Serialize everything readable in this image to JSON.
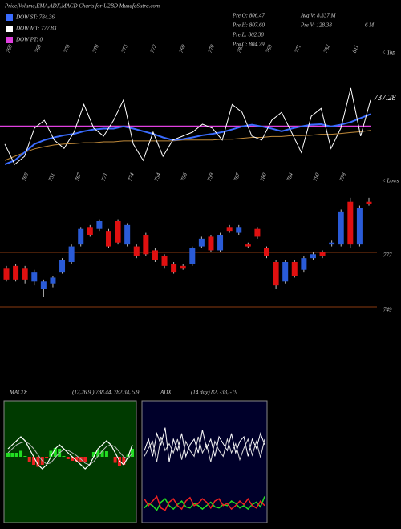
{
  "header": {
    "title": "Price,Volume,EMA,ADX,MACD Charts for U2BD MunafaSutra.com",
    "legend": [
      {
        "label": "DOW ST: 784.36",
        "color": "#3a6cff"
      },
      {
        "label": "DOW MT: 777.83",
        "color": "#ffffff"
      },
      {
        "label": "DOW PT: 0",
        "color": "#e040e0"
      }
    ],
    "info": [
      "Pre O: 806.47",
      "Pre H: 807.60",
      "Pre L: 802.38",
      "Pre C: 804.79"
    ],
    "info2": [
      "Avg V: 8.337 M",
      "Pre V: 128.38"
    ],
    "period": "6 M"
  },
  "chart_data": [
    {
      "type": "line",
      "end_label": "737.28",
      "top_marker": "< Top",
      "low_marker": "< Lows",
      "top_labels": [
        "769",
        "768",
        "770",
        "770",
        "773",
        "772",
        "769",
        "770",
        "783",
        "769",
        "771",
        "782",
        "811"
      ],
      "low_labels": [
        "768",
        "751",
        "767",
        "771",
        "774",
        "754",
        "756",
        "759",
        "767",
        "780",
        "784",
        "790",
        "778"
      ],
      "ylim": [
        725,
        745
      ],
      "hline": {
        "value": 734.5,
        "color": "#e040e0"
      },
      "series": [
        {
          "name": "Close",
          "color": "#ffffff",
          "values": [
            730.5,
            725.9,
            727.7,
            734.1,
            735.9,
            731.4,
            729.5,
            733.2,
            739.5,
            734.1,
            732.3,
            735.9,
            740.5,
            730.5,
            726.8,
            733.2,
            727.7,
            731.4,
            732.3,
            733.2,
            735.0,
            734.1,
            731.4,
            739.5,
            737.7,
            732.3,
            731.4,
            735.9,
            737.7,
            733.2,
            728.6,
            736.8,
            738.6,
            729.5,
            734.1,
            743.2,
            732.3,
            740.5
          ]
        },
        {
          "name": "EMA short",
          "color": "#3a6cff",
          "values": [
            725.9,
            726.8,
            728.6,
            730.5,
            731.4,
            732.0,
            732.5,
            732.8,
            733.4,
            733.8,
            734.0,
            734.0,
            734.5,
            734.0,
            733.4,
            732.8,
            732.0,
            731.4,
            731.6,
            732.0,
            732.5,
            732.8,
            733.2,
            733.8,
            734.5,
            734.9,
            734.5,
            734.0,
            733.4,
            734.0,
            734.5,
            734.9,
            735.0,
            734.5,
            734.9,
            735.5,
            736.4,
            737.3
          ]
        },
        {
          "name": "EMA long",
          "color": "#c08a3a",
          "values": [
            726.8,
            727.7,
            728.6,
            729.4,
            729.9,
            730.3,
            730.5,
            730.6,
            730.8,
            730.8,
            731.0,
            731.0,
            731.2,
            731.2,
            731.2,
            731.2,
            731.2,
            731.2,
            731.4,
            731.4,
            731.4,
            731.4,
            731.6,
            731.6,
            731.8,
            732.0,
            732.0,
            732.2,
            732.2,
            732.4,
            732.4,
            732.5,
            732.7,
            732.7,
            732.9,
            733.1,
            733.3,
            733.6
          ]
        }
      ]
    },
    {
      "type": "candlestick",
      "ylim": [
        744,
        814
      ],
      "yticks": [
        777,
        749
      ],
      "open": [
        769,
        770,
        769,
        762,
        758,
        761,
        767,
        772,
        781,
        790,
        789,
        788,
        793,
        781,
        780,
        786,
        778,
        775,
        771,
        770,
        771,
        780,
        785,
        778,
        790,
        787,
        781,
        789,
        779,
        772,
        762,
        772,
        768,
        774,
        777,
        781,
        781,
        803,
        781,
        803
      ],
      "high": [
        770,
        771,
        770,
        768,
        763,
        765,
        774,
        781,
        790,
        791,
        794,
        789,
        794,
        792,
        781,
        787,
        779,
        776,
        772,
        771,
        780,
        785,
        786,
        787,
        791,
        791,
        782,
        790,
        780,
        773,
        773,
        773,
        775,
        777,
        778,
        783,
        799,
        805,
        801,
        805
      ],
      "low": [
        762,
        762,
        761,
        760,
        754,
        759,
        766,
        771,
        780,
        785,
        788,
        779,
        781,
        780,
        774,
        775,
        772,
        769,
        766,
        768,
        770,
        779,
        777,
        777,
        787,
        786,
        779,
        784,
        774,
        758,
        761,
        764,
        767,
        773,
        774,
        780,
        780,
        779,
        780,
        801
      ],
      "close": [
        763,
        763,
        763,
        767,
        762,
        764,
        773,
        780,
        789,
        786,
        793,
        780,
        782,
        791,
        775,
        776,
        773,
        770,
        767,
        769,
        779,
        784,
        778,
        786,
        788,
        790,
        780,
        785,
        775,
        760,
        772,
        765,
        774,
        776,
        775,
        782,
        798,
        781,
        800,
        802
      ],
      "up_color": "#2a5bd7",
      "down_color": "#e01010"
    },
    {
      "type": "macd",
      "label": "MACD:",
      "params": "(12,26,9 ) 788.44, 782.34, 5.9",
      "ylim": [
        -8,
        8
      ],
      "macd": [
        2,
        3,
        4,
        5,
        4,
        2,
        0,
        -2,
        -3,
        -2,
        0,
        2,
        3,
        2,
        1,
        0,
        -1,
        -2,
        -3,
        -2,
        0,
        2,
        3,
        4,
        3,
        1,
        -1,
        -2,
        0,
        3
      ],
      "signal": [
        1,
        2,
        3,
        3.5,
        3.8,
        3.2,
        2,
        0.5,
        -1,
        -1.8,
        -1.5,
        -0.2,
        1,
        1.8,
        1.6,
        1,
        0.3,
        -0.6,
        -1.6,
        -2,
        -1.2,
        0.2,
        1.5,
        2.6,
        3,
        2.5,
        1.2,
        0,
        -0.5,
        1
      ],
      "histogram": [
        1,
        1,
        1,
        1.5,
        0.2,
        -1.2,
        -2,
        -2.5,
        -2,
        -0.2,
        1.5,
        2.2,
        2,
        0.2,
        -0.6,
        -1,
        -1.3,
        -1.4,
        -1.4,
        0,
        1.2,
        1.8,
        1.5,
        1.4,
        0,
        -1.5,
        -2.2,
        -2,
        0.5,
        2
      ]
    },
    {
      "type": "adx",
      "label": "ADX",
      "params": "(14 day) 82, -33, -19",
      "ylim": [
        0,
        100
      ],
      "series": [
        {
          "color": "#ffffff",
          "values": [
            60,
            70,
            55,
            75,
            65,
            80,
            50,
            70,
            60,
            75,
            55,
            65,
            70,
            58,
            78,
            62,
            70,
            55,
            72,
            66,
            60,
            75,
            58,
            68,
            72,
            55,
            70,
            62,
            75,
            65
          ]
        },
        {
          "color": "#dddddd",
          "values": [
            55,
            62,
            68,
            50,
            72,
            60,
            66,
            58,
            70,
            52,
            68,
            60,
            55,
            72,
            58,
            65,
            50,
            68,
            60,
            55,
            70,
            58,
            66,
            52,
            62,
            70,
            56,
            68,
            54,
            70
          ]
        },
        {
          "color": "#22dd22",
          "values": [
            10,
            14,
            12,
            8,
            15,
            18,
            12,
            9,
            13,
            16,
            11,
            10,
            14,
            12,
            9,
            12,
            15,
            11,
            10,
            13,
            12,
            16,
            14,
            10,
            12,
            9,
            13,
            15,
            11,
            20
          ]
        },
        {
          "color": "#ee2222",
          "values": [
            18,
            12,
            16,
            20,
            10,
            8,
            15,
            18,
            12,
            9,
            16,
            19,
            12,
            14,
            18,
            15,
            10,
            16,
            18,
            12,
            14,
            9,
            12,
            16,
            13,
            18,
            12,
            10,
            16,
            12
          ]
        }
      ]
    }
  ]
}
